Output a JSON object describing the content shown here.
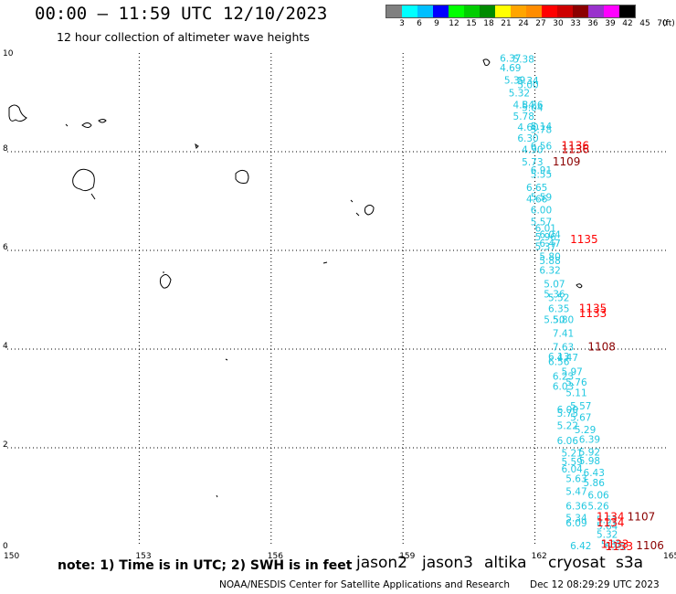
{
  "header": {
    "title": "00:00 – 11:59 UTC 12/10/2023",
    "subtitle": "12 hour collection of altimeter wave heights"
  },
  "legend": {
    "colors": [
      "#808080",
      "#00ffff",
      "#00bfff",
      "#0000ff",
      "#00ff00",
      "#00cd00",
      "#008b00",
      "#ffff00",
      "#ffa500",
      "#ff8c00",
      "#ff0000",
      "#cd0000",
      "#8b0000",
      "#9932cc",
      "#ff00ff",
      "#000000"
    ],
    "labels": [
      "3",
      "6",
      "9",
      "12",
      "15",
      "18",
      "21",
      "24",
      "27",
      "30",
      "33",
      "36",
      "39",
      "42",
      "45",
      "70",
      "(ft)"
    ]
  },
  "map": {
    "lat_labels": [
      "10",
      "8",
      "6",
      "4",
      "2",
      "0"
    ],
    "lon_labels": [
      "150",
      "153",
      "156",
      "159",
      "162",
      "165"
    ],
    "swh_color": "#22c8e0",
    "swh_readings": [
      {
        "v": "6.37",
        "lon": 161.2,
        "lat": 9.9
      },
      {
        "v": "5.38",
        "lon": 161.5,
        "lat": 9.88
      },
      {
        "v": "4.69",
        "lon": 161.2,
        "lat": 9.7
      },
      {
        "v": "5.39",
        "lon": 161.3,
        "lat": 9.45
      },
      {
        "v": "5.34",
        "lon": 161.6,
        "lat": 9.44
      },
      {
        "v": "5.00",
        "lon": 161.6,
        "lat": 9.36
      },
      {
        "v": "5.32",
        "lon": 161.4,
        "lat": 9.19
      },
      {
        "v": "4.84",
        "lon": 161.5,
        "lat": 8.95
      },
      {
        "v": "5.26",
        "lon": 161.7,
        "lat": 8.95
      },
      {
        "v": "5.04",
        "lon": 161.7,
        "lat": 8.9
      },
      {
        "v": "5.78",
        "lon": 161.5,
        "lat": 8.72
      },
      {
        "v": "4.60",
        "lon": 161.6,
        "lat": 8.5
      },
      {
        "v": "5.14",
        "lon": 161.9,
        "lat": 8.52
      },
      {
        "v": "5.78",
        "lon": 161.9,
        "lat": 8.45
      },
      {
        "v": "6.30",
        "lon": 161.6,
        "lat": 8.28
      },
      {
        "v": "4.90",
        "lon": 161.7,
        "lat": 8.05
      },
      {
        "v": "6.56",
        "lon": 161.9,
        "lat": 8.12
      },
      {
        "v": "5.73",
        "lon": 161.7,
        "lat": 7.8
      },
      {
        "v": "6.91",
        "lon": 161.9,
        "lat": 7.63
      },
      {
        "v": "5.55",
        "lon": 161.9,
        "lat": 7.55
      },
      {
        "v": "6.65",
        "lon": 161.8,
        "lat": 7.28
      },
      {
        "v": "4.66",
        "lon": 161.8,
        "lat": 7.05
      },
      {
        "v": "5.59",
        "lon": 161.9,
        "lat": 7.08
      },
      {
        "v": "6.00",
        "lon": 161.9,
        "lat": 6.82
      },
      {
        "v": "5.57",
        "lon": 161.9,
        "lat": 6.58
      },
      {
        "v": "6.01",
        "lon": 162.0,
        "lat": 6.45
      },
      {
        "v": "6.04",
        "lon": 162.1,
        "lat": 6.32
      },
      {
        "v": "5.96",
        "lon": 162.0,
        "lat": 6.28
      },
      {
        "v": "6.47",
        "lon": 162.1,
        "lat": 6.15
      },
      {
        "v": "5.37",
        "lon": 162.0,
        "lat": 6.08
      },
      {
        "v": "5.80",
        "lon": 162.1,
        "lat": 5.88
      },
      {
        "v": "5.88",
        "lon": 162.1,
        "lat": 5.8
      },
      {
        "v": "6.32",
        "lon": 162.1,
        "lat": 5.6
      },
      {
        "v": "5.07",
        "lon": 162.2,
        "lat": 5.32
      },
      {
        "v": "5.36",
        "lon": 162.2,
        "lat": 5.12
      },
      {
        "v": "5.52",
        "lon": 162.3,
        "lat": 5.05
      },
      {
        "v": "6.35",
        "lon": 162.3,
        "lat": 4.82
      },
      {
        "v": "5.50",
        "lon": 162.2,
        "lat": 4.6
      },
      {
        "v": "5.80",
        "lon": 162.4,
        "lat": 4.6
      },
      {
        "v": "7.41",
        "lon": 162.4,
        "lat": 4.32
      },
      {
        "v": "7.63",
        "lon": 162.4,
        "lat": 4.05
      },
      {
        "v": "6.13",
        "lon": 162.3,
        "lat": 3.85
      },
      {
        "v": "4.47",
        "lon": 162.5,
        "lat": 3.83
      },
      {
        "v": "6.56",
        "lon": 162.3,
        "lat": 3.75
      },
      {
        "v": "5.97",
        "lon": 162.6,
        "lat": 3.55
      },
      {
        "v": "6.23",
        "lon": 162.4,
        "lat": 3.45
      },
      {
        "v": "5.76",
        "lon": 162.7,
        "lat": 3.33
      },
      {
        "v": "6.03",
        "lon": 162.4,
        "lat": 3.25
      },
      {
        "v": "5.11",
        "lon": 162.7,
        "lat": 3.12
      },
      {
        "v": "5.57",
        "lon": 162.8,
        "lat": 2.85
      },
      {
        "v": "6.00",
        "lon": 162.5,
        "lat": 2.78
      },
      {
        "v": "5.75",
        "lon": 162.5,
        "lat": 2.7
      },
      {
        "v": "5.67",
        "lon": 162.8,
        "lat": 2.62
      },
      {
        "v": "5.22",
        "lon": 162.5,
        "lat": 2.45
      },
      {
        "v": "5.29",
        "lon": 162.9,
        "lat": 2.37
      },
      {
        "v": "6.06",
        "lon": 162.5,
        "lat": 2.15
      },
      {
        "v": "6.39",
        "lon": 163.0,
        "lat": 2.18
      },
      {
        "v": "5.21",
        "lon": 162.6,
        "lat": 1.9
      },
      {
        "v": "5.92",
        "lon": 163.0,
        "lat": 1.92
      },
      {
        "v": "5.59",
        "lon": 162.6,
        "lat": 1.72
      },
      {
        "v": "5.98",
        "lon": 163.0,
        "lat": 1.74
      },
      {
        "v": "6.04",
        "lon": 162.6,
        "lat": 1.57
      },
      {
        "v": "6.43",
        "lon": 163.1,
        "lat": 1.5
      },
      {
        "v": "5.63",
        "lon": 162.7,
        "lat": 1.38
      },
      {
        "v": "5.86",
        "lon": 163.1,
        "lat": 1.3
      },
      {
        "v": "5.47",
        "lon": 162.7,
        "lat": 1.12
      },
      {
        "v": "6.06",
        "lon": 163.2,
        "lat": 1.05
      },
      {
        "v": "6.36",
        "lon": 162.7,
        "lat": 0.82
      },
      {
        "v": "5.26",
        "lon": 163.2,
        "lat": 0.82
      },
      {
        "v": "5.34",
        "lon": 162.7,
        "lat": 0.58
      },
      {
        "v": "6.09",
        "lon": 162.7,
        "lat": 0.48
      },
      {
        "v": "5.51",
        "lon": 163.4,
        "lat": 0.55
      },
      {
        "v": "5.64",
        "lon": 163.4,
        "lat": 0.42
      },
      {
        "v": "5.32",
        "lon": 163.4,
        "lat": 0.25
      },
      {
        "v": "6.42",
        "lon": 162.8,
        "lat": 0.02
      },
      {
        "v": "5.22",
        "lon": 163.6,
        "lat": 0.0
      },
      {
        "v": "5.85",
        "lon": 163.5,
        "lat": 0.05
      }
    ],
    "pass_ids": [
      {
        "id": "1136",
        "lon": 162.6,
        "lat": 8.12,
        "color": "#ff0000"
      },
      {
        "id": "1136",
        "lon": 162.6,
        "lat": 8.05,
        "color": "#cd0000"
      },
      {
        "id": "1109",
        "lon": 162.4,
        "lat": 7.8,
        "color": "#8b0000"
      },
      {
        "id": "1135",
        "lon": 162.8,
        "lat": 6.22,
        "color": "#ff0000"
      },
      {
        "id": "1135",
        "lon": 163.0,
        "lat": 4.82,
        "color": "#ff0000"
      },
      {
        "id": "1133",
        "lon": 163.0,
        "lat": 4.72,
        "color": "#ff0000"
      },
      {
        "id": "1108",
        "lon": 163.2,
        "lat": 4.05,
        "color": "#8b0000"
      },
      {
        "id": "1134",
        "lon": 163.4,
        "lat": 0.6,
        "color": "#ff0000"
      },
      {
        "id": "1107",
        "lon": 164.1,
        "lat": 0.6,
        "color": "#8b0000"
      },
      {
        "id": "1134",
        "lon": 163.4,
        "lat": 0.48,
        "color": "#ff0000"
      },
      {
        "id": "1133",
        "lon": 163.5,
        "lat": 0.05,
        "color": "#ff0000"
      },
      {
        "id": "1133",
        "lon": 163.6,
        "lat": 0.0,
        "color": "#ff0000"
      },
      {
        "id": "1106",
        "lon": 164.3,
        "lat": 0.02,
        "color": "#8b0000"
      }
    ]
  },
  "note": "note: 1) Time is in UTC; 2) SWH is in feet",
  "satellites": [
    {
      "name": "jason2",
      "color": "#0000ff"
    },
    {
      "name": "jason3",
      "color": "#009900"
    },
    {
      "name": "altika",
      "color": "#ff8c00"
    },
    {
      "name": "cryosat",
      "color": "#ff0000"
    },
    {
      "name": "s3a",
      "color": "#8b0000"
    }
  ],
  "footer": {
    "source": "NOAA/NESDIS Center for Satellite Applications and Research",
    "timestamp": "Dec 12 08:29:29 UTC 2023"
  }
}
